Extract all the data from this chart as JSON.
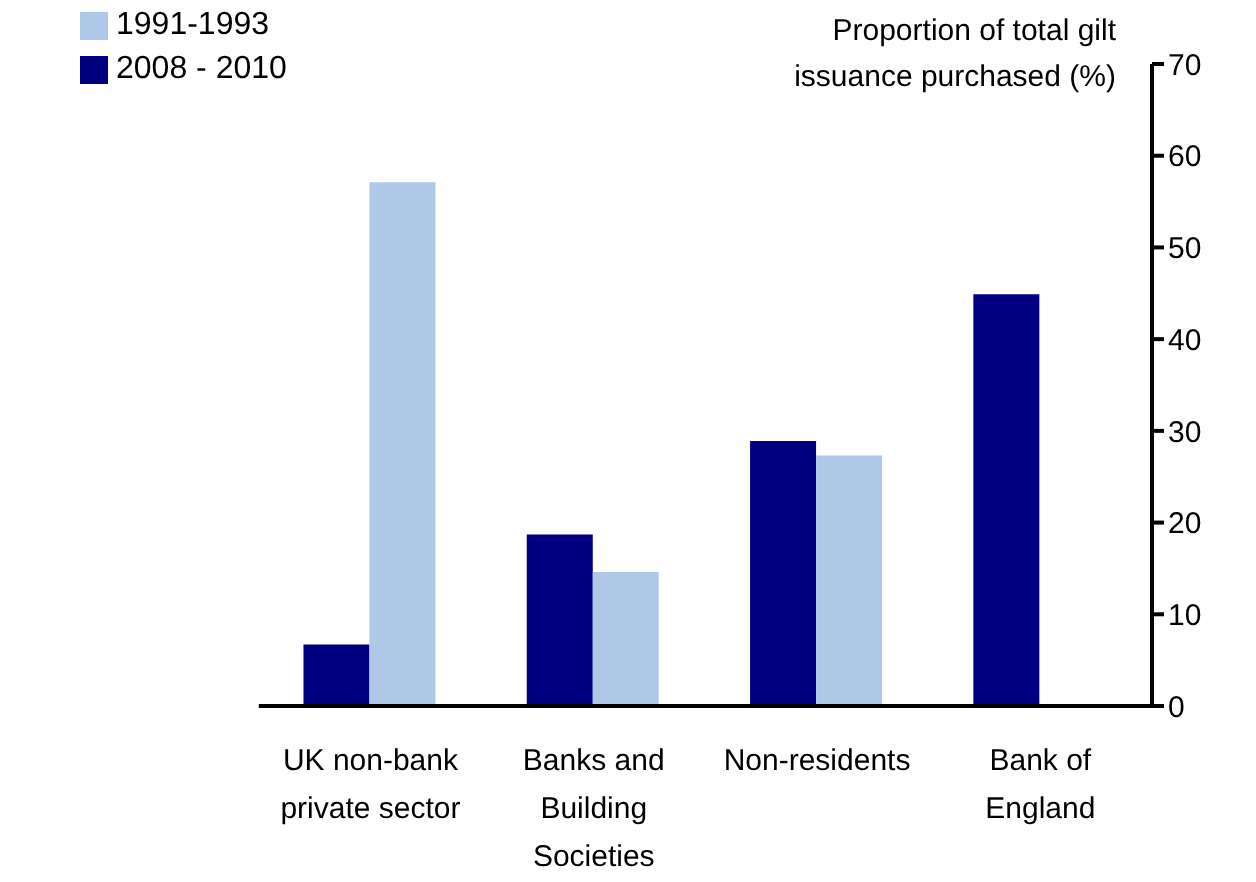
{
  "chart_data": {
    "type": "bar",
    "ylabel": "Proportion of total gilt issuance purchased (%)",
    "categories": [
      "UK non-bank private sector",
      "Banks and Building Societies",
      "Non-residents",
      "Bank of England"
    ],
    "series": [
      {
        "name": "2008 - 2010",
        "color": "#000080",
        "values": [
          6.7,
          18.7,
          28.9,
          44.9
        ]
      },
      {
        "name": "1991-1993",
        "color": "#b0c8e8",
        "values": [
          57.1,
          14.6,
          27.3,
          null
        ]
      }
    ],
    "ylim": [
      0,
      70
    ],
    "yticks": [
      0,
      10,
      20,
      30,
      40,
      50,
      60,
      70
    ],
    "grid": false,
    "legend": "top left"
  }
}
